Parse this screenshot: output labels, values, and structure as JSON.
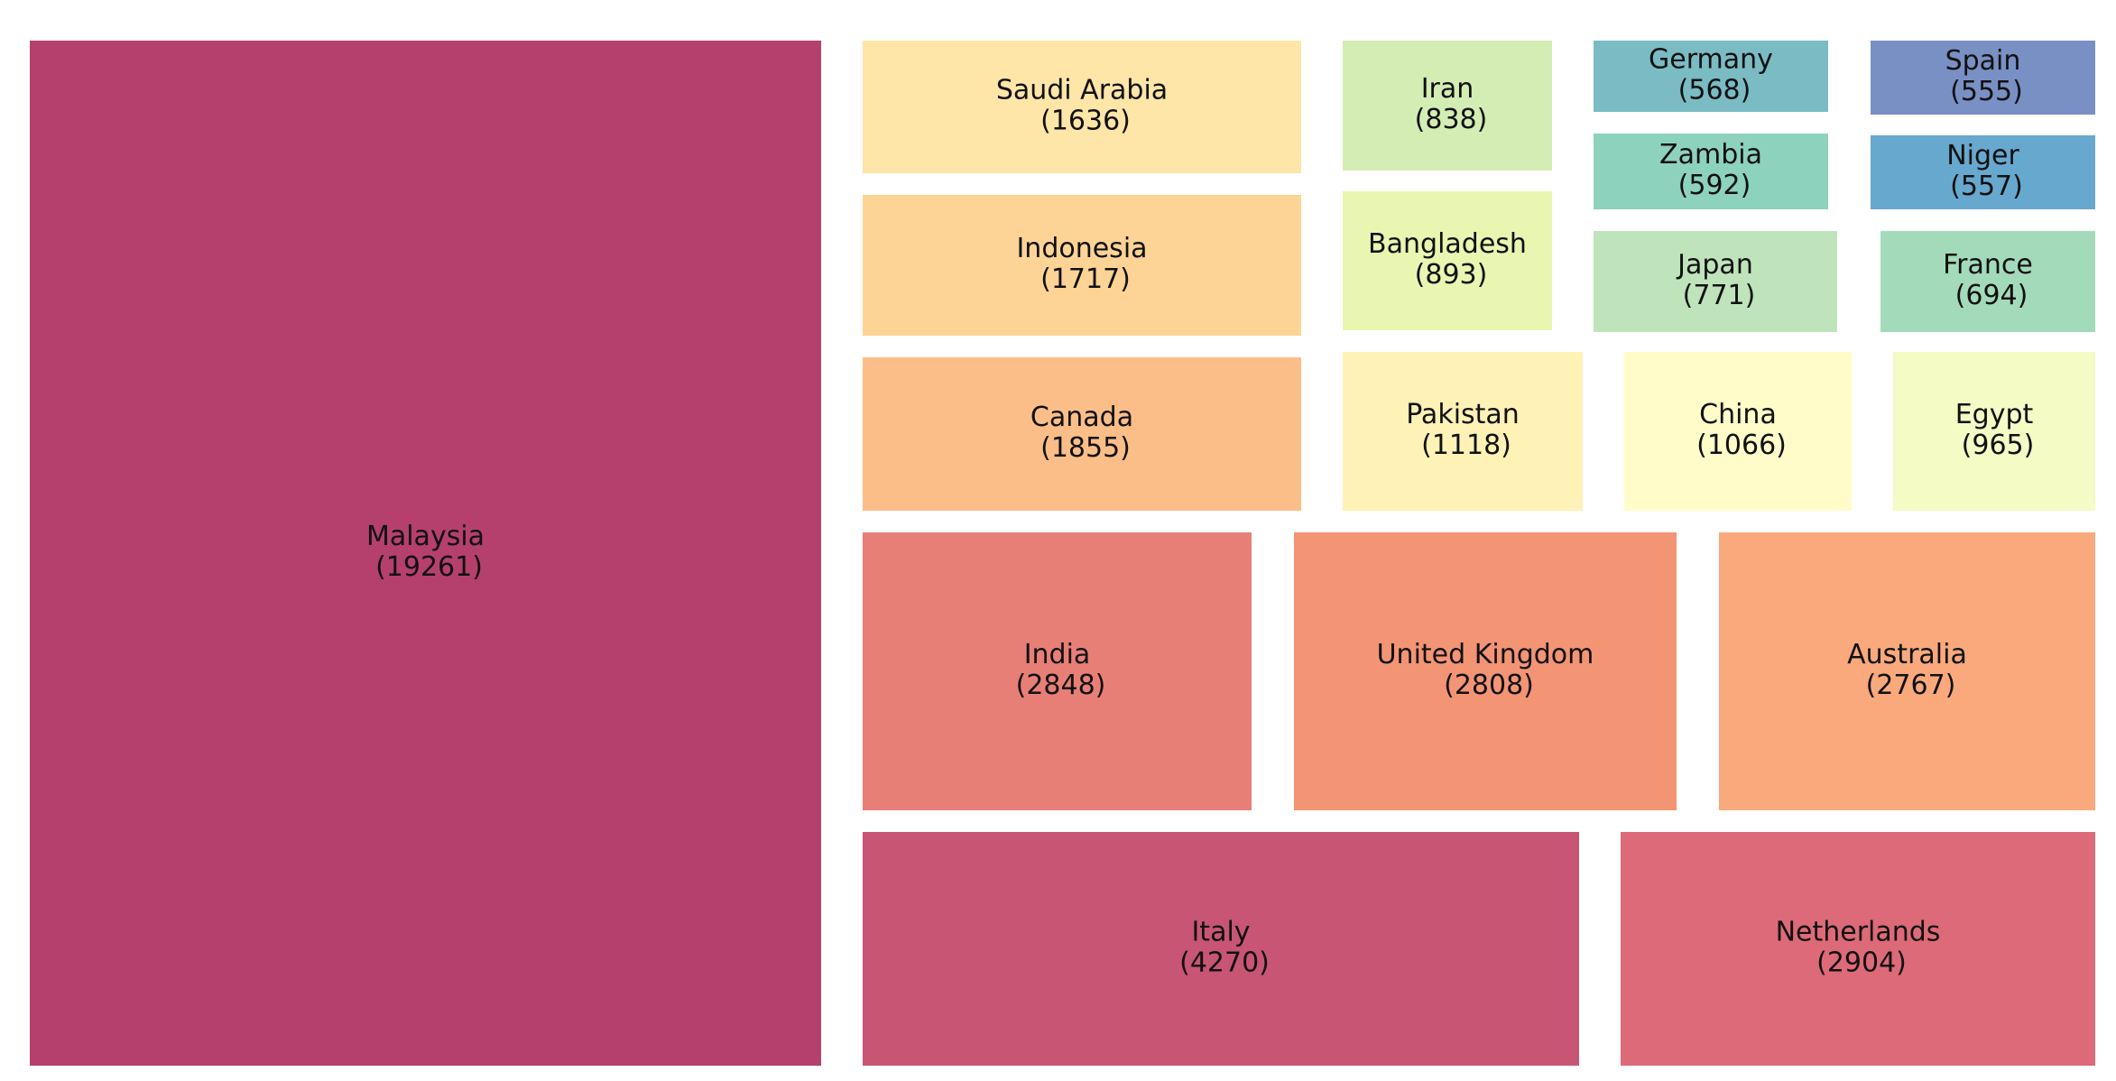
{
  "chart_data": {
    "type": "treemap",
    "legend": "none",
    "grid": false,
    "items": [
      {
        "label": "Malaysia",
        "value": 19261,
        "value_text": "(19261)",
        "color": "#b5406e"
      },
      {
        "label": "Italy",
        "value": 4270,
        "value_text": "(4270)",
        "color": "#c85574"
      },
      {
        "label": "Netherlands",
        "value": 2904,
        "value_text": "(2904)",
        "color": "#dd6a78"
      },
      {
        "label": "India",
        "value": 2848,
        "value_text": "(2848)",
        "color": "#e87f76"
      },
      {
        "label": "United Kingdom",
        "value": 2808,
        "value_text": "(2808)",
        "color": "#f39475"
      },
      {
        "label": "Australia",
        "value": 2767,
        "value_text": "(2767)",
        "color": "#f9a97b"
      },
      {
        "label": "Canada",
        "value": 1855,
        "value_text": "(1855)",
        "color": "#fcbe88"
      },
      {
        "label": "Indonesia",
        "value": 1717,
        "value_text": "(1717)",
        "color": "#fdd496"
      },
      {
        "label": "Saudi Arabia",
        "value": 1636,
        "value_text": "(1636)",
        "color": "#fee5a8"
      },
      {
        "label": "Pakistan",
        "value": 1118,
        "value_text": "(1118)",
        "color": "#fef2b6"
      },
      {
        "label": "China",
        "value": 1066,
        "value_text": "(1066)",
        "color": "#fffcc9"
      },
      {
        "label": "Egypt",
        "value": 965,
        "value_text": "(965)",
        "color": "#f5fbc4"
      },
      {
        "label": "Bangladesh",
        "value": 893,
        "value_text": "(893)",
        "color": "#e8f6b2"
      },
      {
        "label": "Iran",
        "value": 838,
        "value_text": "(838)",
        "color": "#d4edb5"
      },
      {
        "label": "Japan",
        "value": 771,
        "value_text": "(771)",
        "color": "#bfe4bb"
      },
      {
        "label": "France",
        "value": 694,
        "value_text": "(694)",
        "color": "#a3dbba"
      },
      {
        "label": "Zambia",
        "value": 592,
        "value_text": "(592)",
        "color": "#8dd2bd"
      },
      {
        "label": "Germany",
        "value": 568,
        "value_text": "(568)",
        "color": "#7abbc4"
      },
      {
        "label": "Niger",
        "value": 557,
        "value_text": "(557)",
        "color": "#67a8ce"
      },
      {
        "label": "Spain",
        "value": 555,
        "value_text": "(555)",
        "color": "#7990c4"
      }
    ]
  }
}
